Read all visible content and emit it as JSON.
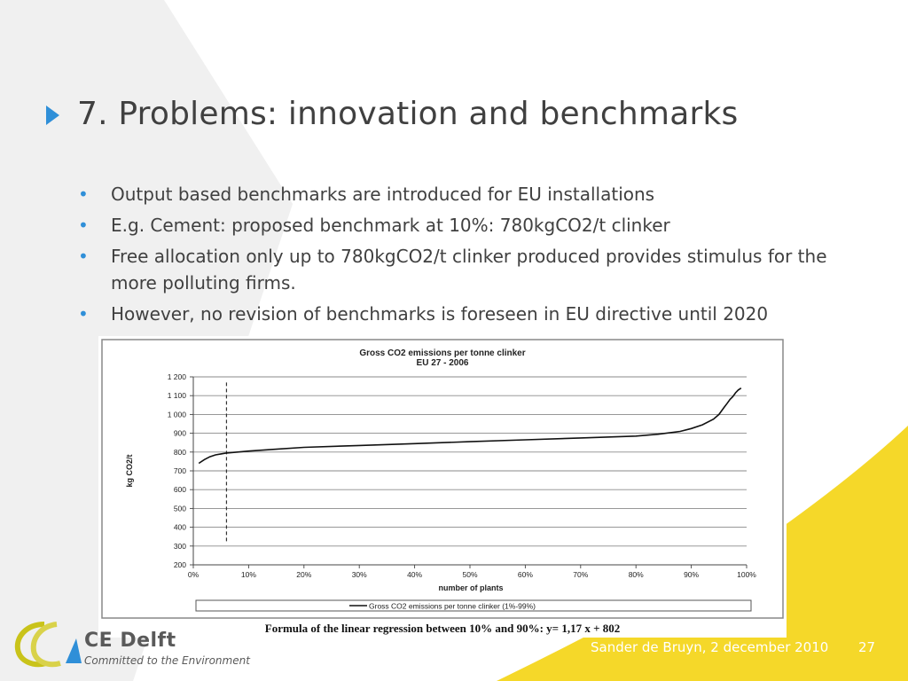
{
  "slide": {
    "title": "7. Problems: innovation and benchmarks",
    "bullets": [
      "Output based benchmarks are introduced for EU installations",
      "E.g. Cement: proposed benchmark at 10%: 780kgCO2/t clinker",
      "Free allocation only up to 780kgCO2/t clinker produced provides stimulus for the more polluting firms.",
      "However, no revision of benchmarks is foreseen in EU directive until 2020"
    ],
    "footer": "Sander de Bruyn, 2 december 2010",
    "page_number": "27",
    "logo": {
      "name": "CE Delft",
      "tagline": "Committed to the Environment"
    }
  },
  "colors": {
    "accent_blue": "#2f8fd8",
    "yellow": "#f5d829",
    "grey_band": "#e8e8e8",
    "text": "#404040"
  },
  "chart_data": {
    "type": "line",
    "title": "Gross CO2 emissions per tonne clinker",
    "subtitle": "EU 27 - 2006",
    "xlabel": "number of plants",
    "ylabel": "kg CO2/t",
    "xlim": [
      0,
      100
    ],
    "ylim": [
      200,
      1200
    ],
    "x_ticks": [
      "0%",
      "10%",
      "20%",
      "30%",
      "40%",
      "50%",
      "60%",
      "70%",
      "80%",
      "90%",
      "100%"
    ],
    "y_ticks": [
      "200",
      "300",
      "400",
      "500",
      "600",
      "700",
      "800",
      "900",
      "1 000",
      "1 100",
      "1 200"
    ],
    "grid": "horizontal",
    "legend_position": "bottom",
    "reference_line": {
      "x": 6
    },
    "series": [
      {
        "name": "Gross CO2 emissions per tonne clinker (1%-99%)",
        "x": [
          1,
          2,
          3,
          4,
          5,
          6,
          8,
          10,
          15,
          20,
          30,
          40,
          50,
          60,
          70,
          80,
          84,
          88,
          90,
          92,
          94,
          95,
          96,
          96.5,
          97,
          97.5,
          98,
          98.5,
          99
        ],
        "y": [
          740,
          760,
          775,
          785,
          790,
          795,
          800,
          805,
          815,
          825,
          835,
          845,
          855,
          865,
          875,
          885,
          895,
          910,
          925,
          945,
          975,
          1000,
          1040,
          1060,
          1080,
          1095,
          1115,
          1130,
          1140
        ]
      }
    ],
    "caption": "Formula of the linear regression between 10% and 90%: y= 1,17 x + 802"
  }
}
